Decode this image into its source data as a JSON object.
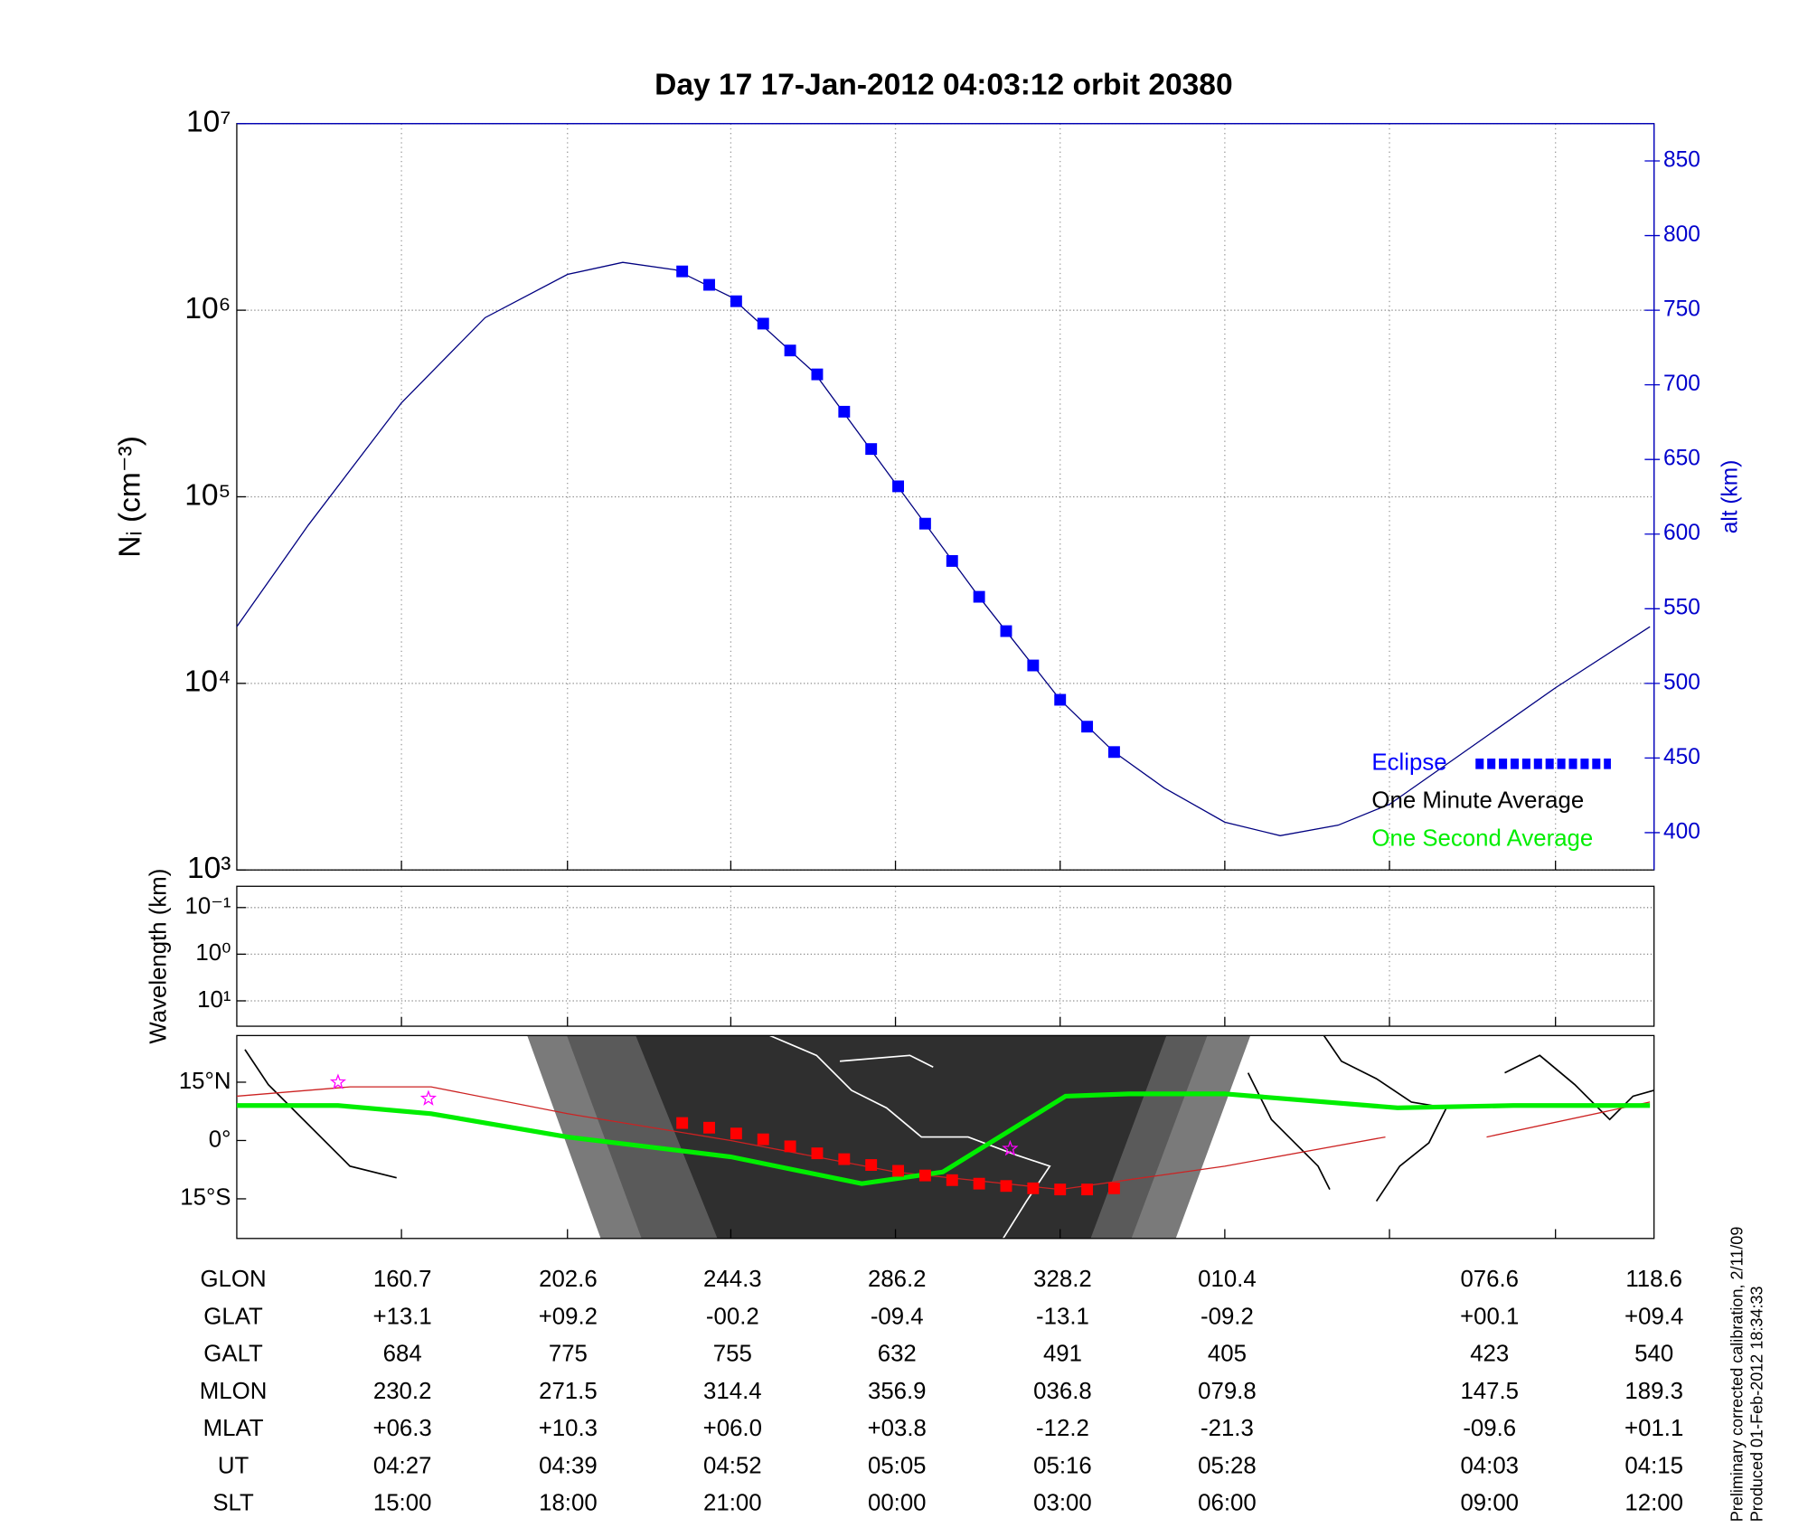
{
  "chart_data": [
    {
      "type": "line",
      "title": "Day 17  17-Jan-2012 04:03:12   orbit 20380",
      "ylabel": "Nᵢ (cm⁻³)",
      "y2label": "alt (km)",
      "log_y": true,
      "ylim": [
        1000,
        10000000
      ],
      "yticks": [
        {
          "value": 1000,
          "label": "10³"
        },
        {
          "value": 10000,
          "label": "10⁴"
        },
        {
          "value": 100000,
          "label": "10⁵"
        },
        {
          "value": 1000000,
          "label": "10⁶"
        },
        {
          "value": 10000000,
          "label": "10⁷"
        }
      ],
      "y2lim": [
        375,
        875
      ],
      "y2ticks": [
        400,
        450,
        500,
        550,
        600,
        650,
        700,
        750,
        800,
        850
      ],
      "y2color": "#0000cc",
      "xlim": [
        255,
        360
      ],
      "xgrid": [
        267.2,
        279.5,
        291.6,
        303.8,
        316.0,
        328.2,
        340.4,
        352.7
      ],
      "grid": true,
      "legend": "lower right",
      "series": [
        {
          "color": "#000080",
          "axis": "y2",
          "style": "line",
          "x": [
            255,
            260.3,
            267.2,
            273.4,
            279.5,
            283.6,
            287.5,
            291.6,
            297.8,
            303.8,
            309.9,
            316.0,
            320.0,
            323.7,
            328.2,
            332.3,
            336.6,
            340.4,
            345.3,
            352.7,
            359.7
          ],
          "values": [
            538,
            606,
            688,
            745,
            774,
            782,
            777,
            759,
            708,
            634,
            559,
            489,
            454,
            430,
            407,
            398,
            405,
            419,
            450,
            497,
            538
          ]
        },
        {
          "name": "Eclipse",
          "color": "#0000ff",
          "axis": "y2",
          "style": "markers",
          "x": [
            288,
            290,
            292,
            294,
            296,
            298,
            300,
            302,
            304,
            306,
            308,
            310,
            312,
            314,
            316,
            318,
            320
          ],
          "values": [
            776,
            767,
            756,
            741,
            723,
            707,
            682,
            657,
            632,
            607,
            582,
            558,
            535,
            512,
            489,
            471,
            454
          ]
        },
        {
          "name": "One Minute Average",
          "color": "#000000",
          "style": "line",
          "x": [],
          "values": []
        },
        {
          "name": "One Second Average",
          "color": "#00ee00",
          "style": "line",
          "x": [],
          "values": []
        }
      ]
    },
    {
      "type": "line",
      "ylabel": "Wavelength (km)",
      "log_y": true,
      "y_reversed": true,
      "ylim": [
        0.035,
        35
      ],
      "yticks": [
        {
          "value": 0.1,
          "label": "10⁻¹"
        },
        {
          "value": 1,
          "label": "10⁰"
        },
        {
          "value": 10,
          "label": "10¹"
        }
      ],
      "xlim": [
        255,
        360
      ],
      "xgrid": [
        267.2,
        279.5,
        291.6,
        303.8,
        316.0,
        328.2,
        340.4,
        352.7
      ],
      "grid": true
    },
    {
      "type": "map",
      "ylim": [
        -25.2,
        27
      ],
      "yticks": [
        {
          "value": 15,
          "label": "15°N"
        },
        {
          "value": 0,
          "label": "0°"
        },
        {
          "value": -15,
          "label": "15°S"
        }
      ],
      "xlim": [
        255,
        360
      ],
      "xgrid": [
        267.2,
        279.5,
        291.6,
        303.8,
        316.0,
        328.2,
        340.4,
        352.7
      ],
      "series": [
        {
          "color": "#cc2222",
          "style": "line",
          "width": 1,
          "x": [
            255,
            263.4,
            269.4,
            279.5,
            291.6,
            303.8,
            316.0,
            328.2,
            340.1,
            344,
            347.6,
            359.7
          ],
          "values": [
            11.4,
            13.8,
            13.8,
            6.9,
            0,
            -8.1,
            -12.6,
            -6.6,
            0.9,
            null,
            0.9,
            9.9
          ]
        },
        {
          "color": "#00ee00",
          "style": "line",
          "width": 4,
          "x": [
            255,
            262.5,
            269.4,
            279.5,
            291.6,
            301.3,
            307.3,
            316.4,
            321.1,
            328.2,
            341.0,
            349.6,
            359.7
          ],
          "values": [
            9,
            9,
            6.9,
            0.9,
            -4.2,
            -11.1,
            -8.1,
            11.4,
            12.0,
            12.0,
            8.4,
            9.0,
            9.0
          ]
        },
        {
          "color": "#ff0000",
          "style": "markers",
          "x": [
            288,
            290,
            292,
            294,
            296,
            298,
            300,
            302,
            304,
            306,
            308,
            310,
            312,
            314,
            316,
            318,
            320
          ],
          "values": [
            4.5,
            3.3,
            1.8,
            0.3,
            -1.5,
            -3.3,
            -4.8,
            -6.3,
            -7.8,
            -9.0,
            -10.2,
            -11.1,
            -11.7,
            -12.3,
            -12.6,
            -12.6,
            -12.3
          ]
        },
        {
          "color": "#ff00ff",
          "style": "stars",
          "x": [
            262.5,
            269.2,
            312.3
          ],
          "values": [
            15,
            10.8,
            -2.1
          ]
        }
      ]
    }
  ],
  "table": {
    "rows": [
      [
        "GLON",
        "160.7",
        "202.6",
        "244.3",
        "286.2",
        "328.2",
        "010.4",
        "076.6",
        "118.6"
      ],
      [
        "GLAT",
        "+13.1",
        "+09.2",
        "-00.2",
        "-09.4",
        "-13.1",
        "-09.2",
        "+00.1",
        "+09.4"
      ],
      [
        "GALT",
        "684",
        "775",
        "755",
        "632",
        "491",
        "405",
        "423",
        "540"
      ],
      [
        "MLON",
        "230.2",
        "271.5",
        "314.4",
        "356.9",
        "036.8",
        "079.8",
        "147.5",
        "189.3"
      ],
      [
        "MLAT",
        "+06.3",
        "+10.3",
        "+06.0",
        "+03.8",
        "-12.2",
        "-21.3",
        "-09.6",
        "+01.1"
      ],
      [
        "UT",
        "04:27",
        "04:39",
        "04:52",
        "05:05",
        "05:16",
        "05:28",
        "04:03",
        "04:15"
      ],
      [
        "SLT",
        "15:00",
        "18:00",
        "21:00",
        "00:00",
        "03:00",
        "06:00",
        "09:00",
        "12:00"
      ]
    ]
  },
  "notes": [
    "Preliminary corrected calibration, 2/11/09",
    "Produced 01-Feb-2012 18:34:33"
  ]
}
